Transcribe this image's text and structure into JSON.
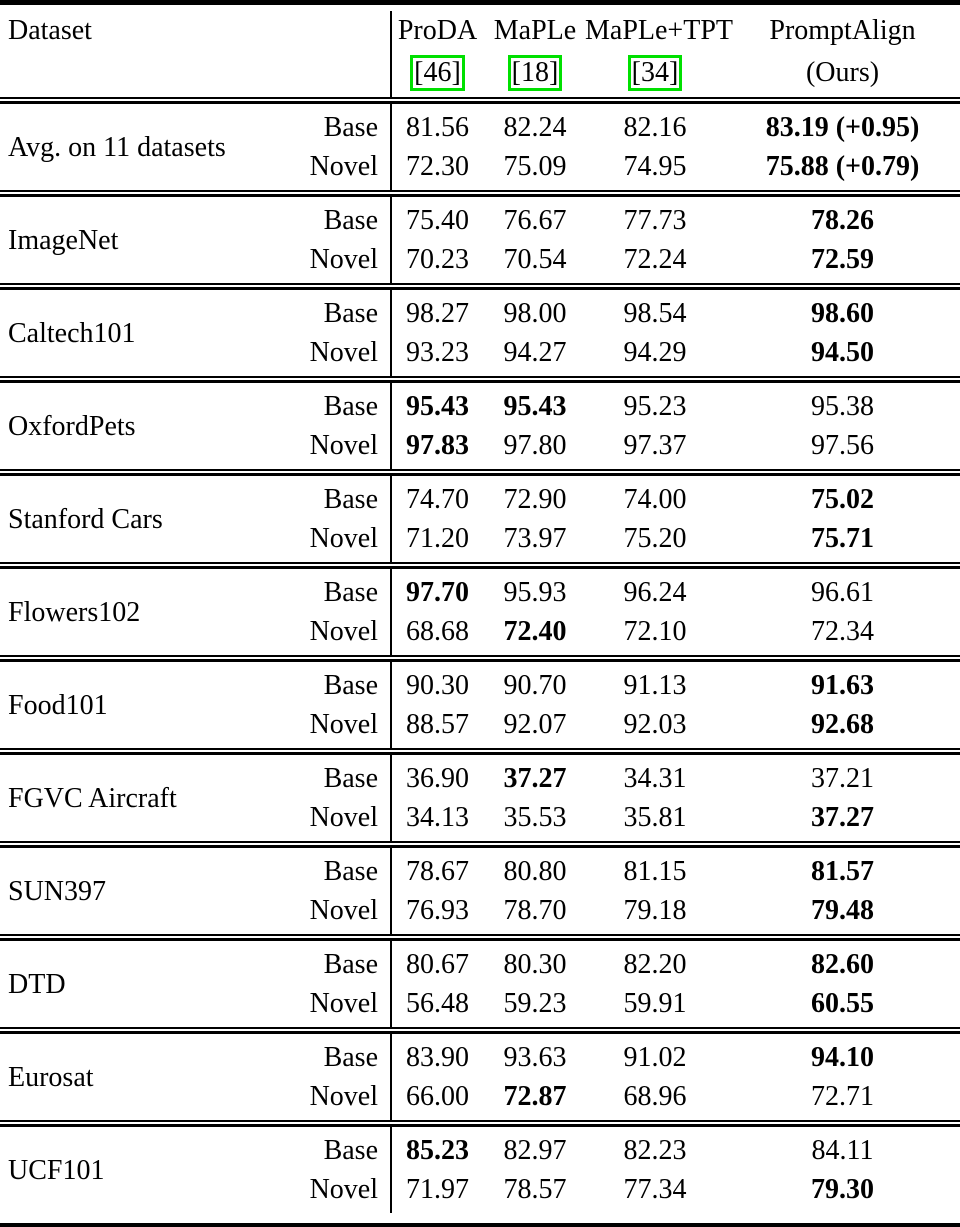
{
  "colors": {
    "citation_box": "#00e000"
  },
  "table": {
    "header": {
      "dataset_label": "Dataset",
      "methods": [
        {
          "name": "ProDA",
          "cite": "[46]"
        },
        {
          "name": "MaPLe",
          "cite": "[18]"
        },
        {
          "name": "MaPLe+TPT",
          "cite": "[34]"
        },
        {
          "name": "PromptAlign",
          "sub": "(Ours)"
        }
      ]
    },
    "split_labels": {
      "base": "Base",
      "novel": "Novel"
    },
    "rows": [
      {
        "dataset": "Avg. on 11 datasets",
        "base": {
          "values": [
            "81.56",
            "82.24",
            "82.16",
            "83.19 (+0.95)"
          ],
          "bold": [
            0,
            0,
            0,
            1
          ]
        },
        "novel": {
          "values": [
            "72.30",
            "75.09",
            "74.95",
            "75.88 (+0.79)"
          ],
          "bold": [
            0,
            0,
            0,
            1
          ]
        }
      },
      {
        "dataset": "ImageNet",
        "base": {
          "values": [
            "75.40",
            "76.67",
            "77.73",
            "78.26"
          ],
          "bold": [
            0,
            0,
            0,
            1
          ]
        },
        "novel": {
          "values": [
            "70.23",
            "70.54",
            "72.24",
            "72.59"
          ],
          "bold": [
            0,
            0,
            0,
            1
          ]
        }
      },
      {
        "dataset": "Caltech101",
        "base": {
          "values": [
            "98.27",
            "98.00",
            "98.54",
            "98.60"
          ],
          "bold": [
            0,
            0,
            0,
            1
          ]
        },
        "novel": {
          "values": [
            "93.23",
            "94.27",
            "94.29",
            "94.50"
          ],
          "bold": [
            0,
            0,
            0,
            1
          ]
        }
      },
      {
        "dataset": "OxfordPets",
        "base": {
          "values": [
            "95.43",
            "95.43",
            "95.23",
            "95.38"
          ],
          "bold": [
            1,
            1,
            0,
            0
          ]
        },
        "novel": {
          "values": [
            "97.83",
            "97.80",
            "97.37",
            "97.56"
          ],
          "bold": [
            1,
            0,
            0,
            0
          ]
        }
      },
      {
        "dataset": "Stanford Cars",
        "base": {
          "values": [
            "74.70",
            "72.90",
            "74.00",
            "75.02"
          ],
          "bold": [
            0,
            0,
            0,
            1
          ]
        },
        "novel": {
          "values": [
            "71.20",
            "73.97",
            "75.20",
            "75.71"
          ],
          "bold": [
            0,
            0,
            0,
            1
          ]
        }
      },
      {
        "dataset": "Flowers102",
        "base": {
          "values": [
            "97.70",
            "95.93",
            "96.24",
            "96.61"
          ],
          "bold": [
            1,
            0,
            0,
            0
          ]
        },
        "novel": {
          "values": [
            "68.68",
            "72.40",
            "72.10",
            "72.34"
          ],
          "bold": [
            0,
            1,
            0,
            0
          ]
        }
      },
      {
        "dataset": "Food101",
        "base": {
          "values": [
            "90.30",
            "90.70",
            "91.13",
            "91.63"
          ],
          "bold": [
            0,
            0,
            0,
            1
          ]
        },
        "novel": {
          "values": [
            "88.57",
            "92.07",
            "92.03",
            "92.68"
          ],
          "bold": [
            0,
            0,
            0,
            1
          ]
        }
      },
      {
        "dataset": "FGVC Aircraft",
        "base": {
          "values": [
            "36.90",
            "37.27",
            "34.31",
            "37.21"
          ],
          "bold": [
            0,
            1,
            0,
            0
          ]
        },
        "novel": {
          "values": [
            "34.13",
            "35.53",
            "35.81",
            "37.27"
          ],
          "bold": [
            0,
            0,
            0,
            1
          ]
        }
      },
      {
        "dataset": "SUN397",
        "base": {
          "values": [
            "78.67",
            "80.80",
            "81.15",
            "81.57"
          ],
          "bold": [
            0,
            0,
            0,
            1
          ]
        },
        "novel": {
          "values": [
            "76.93",
            "78.70",
            "79.18",
            "79.48"
          ],
          "bold": [
            0,
            0,
            0,
            1
          ]
        }
      },
      {
        "dataset": "DTD",
        "base": {
          "values": [
            "80.67",
            "80.30",
            "82.20",
            "82.60"
          ],
          "bold": [
            0,
            0,
            0,
            1
          ]
        },
        "novel": {
          "values": [
            "56.48",
            "59.23",
            "59.91",
            "60.55"
          ],
          "bold": [
            0,
            0,
            0,
            1
          ]
        }
      },
      {
        "dataset": "Eurosat",
        "base": {
          "values": [
            "83.90",
            "93.63",
            "91.02",
            "94.10"
          ],
          "bold": [
            0,
            0,
            0,
            1
          ]
        },
        "novel": {
          "values": [
            "66.00",
            "72.87",
            "68.96",
            "72.71"
          ],
          "bold": [
            0,
            1,
            0,
            0
          ]
        }
      },
      {
        "dataset": "UCF101",
        "base": {
          "values": [
            "85.23",
            "82.97",
            "82.23",
            "84.11"
          ],
          "bold": [
            1,
            0,
            0,
            0
          ]
        },
        "novel": {
          "values": [
            "71.97",
            "78.57",
            "77.34",
            "79.30"
          ],
          "bold": [
            0,
            0,
            0,
            1
          ]
        }
      }
    ]
  }
}
